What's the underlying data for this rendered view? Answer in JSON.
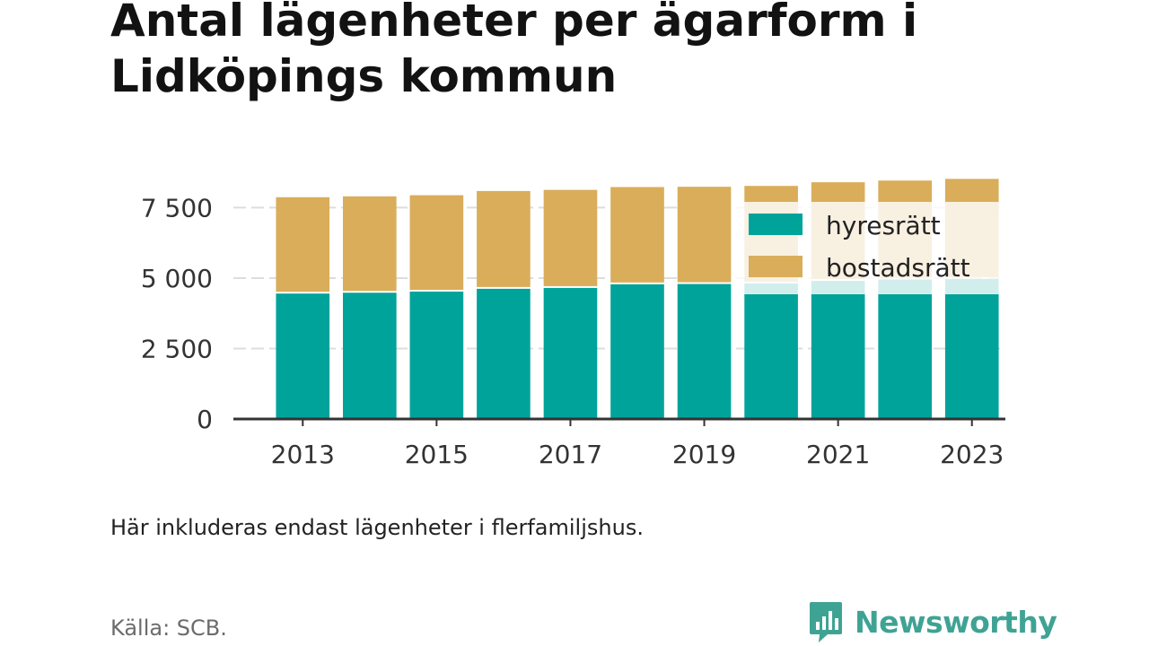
{
  "title": "Antal lägenheter per ägarform i Lidköpings kommun",
  "note": "Här inkluderas endast lägenheter i flerfamiljshus.",
  "source": "Källa: SCB.",
  "brand": "Newsworthy",
  "colors": {
    "hyresratt": "#00a39a",
    "bostadsratt": "#d9ad5a",
    "axis": "#333333",
    "grid": "#dddddd",
    "brand": "#3fa394"
  },
  "chart_data": {
    "type": "bar",
    "stacked": true,
    "categories": [
      "2013",
      "2014",
      "2015",
      "2016",
      "2017",
      "2018",
      "2019",
      "2020",
      "2021",
      "2022",
      "2023"
    ],
    "x_tick_labels": [
      "2013",
      "2015",
      "2017",
      "2019",
      "2021",
      "2023"
    ],
    "series": [
      {
        "name": "hyresrätt",
        "color": "#00a39a",
        "values": [
          4450,
          4480,
          4520,
          4620,
          4650,
          4780,
          4790,
          4810,
          4900,
          4950,
          4970
        ]
      },
      {
        "name": "bostadsrätt",
        "color": "#d9ad5a",
        "values": [
          3420,
          3420,
          3420,
          3470,
          3480,
          3450,
          3450,
          3460,
          3500,
          3510,
          3550
        ]
      }
    ],
    "y_ticks": [
      0,
      2500,
      5000,
      7500
    ],
    "y_tick_labels": [
      "0",
      "2 500",
      "5 000",
      "7 500"
    ],
    "ylim": [
      0,
      8500
    ],
    "grid": true,
    "legend_position": "top-right",
    "xlabel": "",
    "ylabel": ""
  }
}
